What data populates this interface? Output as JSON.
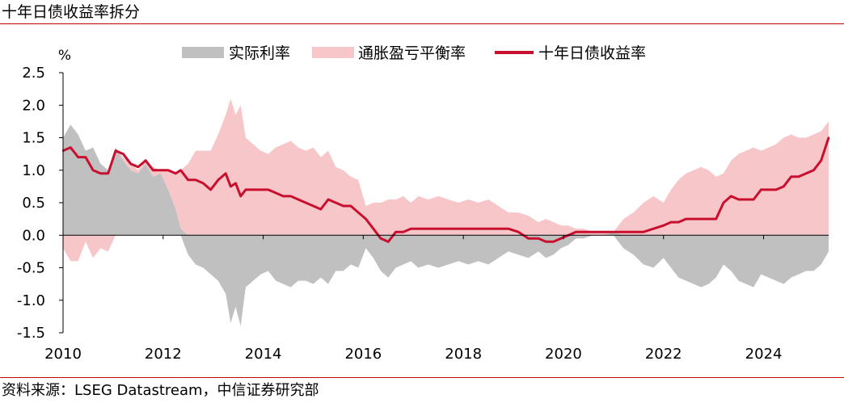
{
  "title": "十年日债收益率拆分",
  "source": "资料来源：LSEG Datastream，中信证券研究部",
  "chart_data": {
    "type": "area",
    "unit_label": "%",
    "ylim": [
      -1.5,
      2.5
    ],
    "yticks": [
      -1.5,
      -1.0,
      -0.5,
      0.0,
      0.5,
      1.0,
      1.5,
      2.0,
      2.5
    ],
    "ytick_labels": [
      "-1.5",
      "-1.0",
      "-0.5",
      "0.0",
      "0.5",
      "1.0",
      "1.5",
      "2.0",
      "2.5"
    ],
    "xlim": [
      2010,
      2025.3
    ],
    "xticks": [
      2010,
      2012,
      2014,
      2016,
      2018,
      2020,
      2022,
      2024
    ],
    "xtick_labels": [
      "2010",
      "2012",
      "2014",
      "2016",
      "2018",
      "2020",
      "2022",
      "2024"
    ],
    "grid": false,
    "legend_position": "top",
    "colors": {
      "real_rate": "#c0c0c0",
      "breakeven": "#f7c6c8",
      "yield": "#c8102e",
      "rule": "#c00000"
    },
    "x": [
      2010.0,
      2010.15,
      2010.3,
      2010.45,
      2010.6,
      2010.75,
      2010.9,
      2011.05,
      2011.2,
      2011.35,
      2011.5,
      2011.65,
      2011.8,
      2011.95,
      2012.1,
      2012.25,
      2012.35,
      2012.5,
      2012.65,
      2012.8,
      2012.95,
      2013.1,
      2013.25,
      2013.35,
      2013.45,
      2013.55,
      2013.65,
      2013.8,
      2013.95,
      2014.1,
      2014.25,
      2014.4,
      2014.55,
      2014.7,
      2014.85,
      2015.0,
      2015.15,
      2015.3,
      2015.45,
      2015.6,
      2015.75,
      2015.9,
      2016.05,
      2016.2,
      2016.35,
      2016.5,
      2016.65,
      2016.8,
      2016.95,
      2017.1,
      2017.3,
      2017.5,
      2017.7,
      2017.9,
      2018.1,
      2018.3,
      2018.5,
      2018.7,
      2018.9,
      2019.1,
      2019.3,
      2019.5,
      2019.65,
      2019.8,
      2019.95,
      2020.1,
      2020.25,
      2020.4,
      2020.6,
      2020.8,
      2021.0,
      2021.2,
      2021.4,
      2021.6,
      2021.8,
      2022.0,
      2022.15,
      2022.3,
      2022.45,
      2022.6,
      2022.75,
      2022.9,
      2023.05,
      2023.2,
      2023.35,
      2023.5,
      2023.65,
      2023.8,
      2023.95,
      2024.1,
      2024.25,
      2024.4,
      2024.55,
      2024.7,
      2024.85,
      2025.0,
      2025.15,
      2025.3
    ],
    "series": [
      {
        "name": "实际利率",
        "kind": "area",
        "values": [
          1.5,
          1.7,
          1.55,
          1.3,
          1.35,
          1.1,
          1.0,
          1.35,
          1.15,
          1.0,
          0.95,
          1.1,
          0.9,
          0.95,
          0.7,
          0.4,
          0.1,
          -0.3,
          -0.45,
          -0.5,
          -0.6,
          -0.7,
          -0.9,
          -1.35,
          -1.1,
          -1.4,
          -0.8,
          -0.7,
          -0.6,
          -0.55,
          -0.7,
          -0.75,
          -0.8,
          -0.7,
          -0.7,
          -0.75,
          -0.65,
          -0.75,
          -0.55,
          -0.55,
          -0.45,
          -0.5,
          -0.2,
          -0.35,
          -0.55,
          -0.65,
          -0.5,
          -0.45,
          -0.4,
          -0.5,
          -0.45,
          -0.5,
          -0.45,
          -0.4,
          -0.45,
          -0.4,
          -0.45,
          -0.35,
          -0.25,
          -0.3,
          -0.35,
          -0.25,
          -0.35,
          -0.3,
          -0.2,
          -0.15,
          -0.05,
          -0.05,
          0.0,
          0.0,
          0.05,
          -0.2,
          -0.3,
          -0.45,
          -0.5,
          -0.35,
          -0.5,
          -0.65,
          -0.7,
          -0.75,
          -0.8,
          -0.75,
          -0.65,
          -0.45,
          -0.55,
          -0.7,
          -0.75,
          -0.8,
          -0.6,
          -0.65,
          -0.7,
          -0.75,
          -0.65,
          -0.6,
          -0.55,
          -0.55,
          -0.45,
          -0.25
        ]
      },
      {
        "name": "通胀盈亏平衡率",
        "kind": "area",
        "values": [
          -0.2,
          -0.4,
          -0.4,
          -0.1,
          -0.35,
          -0.2,
          -0.25,
          0.0,
          0.05,
          0.1,
          0.05,
          0.05,
          0.15,
          0.05,
          0.3,
          0.55,
          0.9,
          1.1,
          1.3,
          1.3,
          1.3,
          1.55,
          1.85,
          2.1,
          1.85,
          2.0,
          1.5,
          1.4,
          1.3,
          1.25,
          1.35,
          1.4,
          1.45,
          1.35,
          1.3,
          1.35,
          1.2,
          1.3,
          1.05,
          1.0,
          0.9,
          0.85,
          0.45,
          0.5,
          0.5,
          0.55,
          0.55,
          0.6,
          0.5,
          0.6,
          0.55,
          0.6,
          0.55,
          0.5,
          0.55,
          0.5,
          0.55,
          0.45,
          0.35,
          0.35,
          0.3,
          0.2,
          0.25,
          0.2,
          0.15,
          0.15,
          0.1,
          0.1,
          0.05,
          0.05,
          0.0,
          0.25,
          0.35,
          0.5,
          0.6,
          0.5,
          0.7,
          0.85,
          0.95,
          1.0,
          1.05,
          1.0,
          0.9,
          0.95,
          1.15,
          1.25,
          1.3,
          1.35,
          1.3,
          1.35,
          1.4,
          1.5,
          1.55,
          1.5,
          1.5,
          1.55,
          1.6,
          1.75
        ]
      },
      {
        "name": "十年日债收益率",
        "kind": "line",
        "values": [
          1.3,
          1.35,
          1.2,
          1.2,
          1.0,
          0.95,
          0.95,
          1.3,
          1.25,
          1.1,
          1.05,
          1.15,
          1.0,
          1.0,
          1.0,
          0.95,
          1.0,
          0.85,
          0.85,
          0.8,
          0.7,
          0.85,
          0.95,
          0.75,
          0.8,
          0.6,
          0.7,
          0.7,
          0.7,
          0.7,
          0.65,
          0.6,
          0.6,
          0.55,
          0.5,
          0.45,
          0.4,
          0.55,
          0.5,
          0.45,
          0.45,
          0.35,
          0.25,
          0.1,
          -0.05,
          -0.1,
          0.05,
          0.05,
          0.1,
          0.1,
          0.1,
          0.1,
          0.1,
          0.1,
          0.1,
          0.1,
          0.1,
          0.1,
          0.1,
          0.05,
          -0.05,
          -0.05,
          -0.1,
          -0.1,
          -0.05,
          0.0,
          0.05,
          0.05,
          0.05,
          0.05,
          0.05,
          0.05,
          0.05,
          0.05,
          0.1,
          0.15,
          0.2,
          0.2,
          0.25,
          0.25,
          0.25,
          0.25,
          0.25,
          0.5,
          0.6,
          0.55,
          0.55,
          0.55,
          0.7,
          0.7,
          0.7,
          0.75,
          0.9,
          0.9,
          0.95,
          1.0,
          1.15,
          1.5
        ]
      }
    ]
  }
}
